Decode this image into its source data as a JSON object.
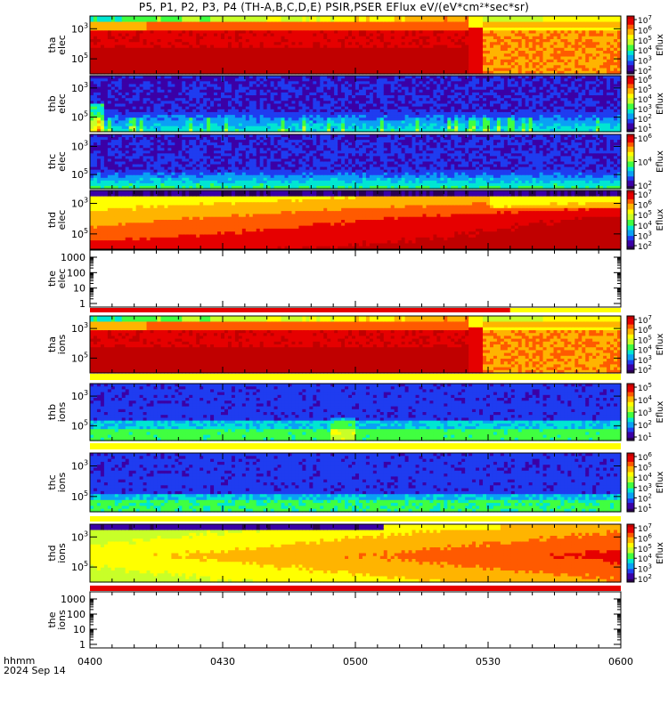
{
  "title": "P5, P1, P2, P3, P4 (TH-A,B,C,D,E) PSIR,PSER EFlux eV/(eV*cm²*sec*sr)",
  "footer": {
    "label_time_format": "hhmm",
    "date": "2024 Sep 14"
  },
  "chart_data": {
    "type": "heatmap",
    "x_ticks": [
      "0400",
      "0430",
      "0500",
      "0530",
      "0600"
    ],
    "x_range": [
      "04:00",
      "06:00"
    ],
    "panels": [
      {
        "id": "tha-elec",
        "ylabel": [
          "tha",
          "elec"
        ],
        "kind": "spectrogram",
        "pattern": "tha",
        "ytick_exps": [
          "3",
          "5"
        ],
        "cbar_exps": [
          "2",
          "3",
          "4",
          "5",
          "6",
          "7"
        ],
        "cbar_label": "Eflux",
        "flag_bar": "none"
      },
      {
        "id": "thb-elec",
        "ylabel": [
          "thb",
          "elec"
        ],
        "kind": "spectrogram",
        "pattern": "thb_e",
        "ytick_exps": [
          "3",
          "5"
        ],
        "cbar_exps": [
          "1",
          "2",
          "3",
          "4",
          "5",
          "6"
        ],
        "cbar_label": "Eflux",
        "flag_bar": "none"
      },
      {
        "id": "thc-elec",
        "ylabel": [
          "thc",
          "elec"
        ],
        "kind": "spectrogram",
        "pattern": "thc_e",
        "ytick_exps": [
          "3",
          "5"
        ],
        "cbar_exps": [
          "2",
          "4",
          "6"
        ],
        "cbar_label": "Eflux",
        "flag_bar": "none"
      },
      {
        "id": "thd-elec",
        "ylabel": [
          "thd",
          "elec"
        ],
        "kind": "spectrogram",
        "pattern": "thd_e",
        "ytick_exps": [
          "3",
          "5"
        ],
        "cbar_exps": [
          "2",
          "3",
          "4",
          "5",
          "6",
          "7"
        ],
        "cbar_label": "Eflux",
        "flag_bar": "none"
      },
      {
        "id": "the-elec",
        "ylabel": [
          "the",
          "elec"
        ],
        "kind": "empty",
        "yticks": [
          "1000",
          "100",
          "10",
          "1"
        ],
        "flag_bar": "red-then-yellow",
        "flag_switch": "05:35"
      },
      {
        "id": "tha-ions",
        "ylabel": [
          "tha",
          "ions"
        ],
        "kind": "spectrogram",
        "pattern": "tha",
        "ytick_exps": [
          "3",
          "5"
        ],
        "cbar_exps": [
          "2",
          "3",
          "4",
          "5",
          "6",
          "7"
        ],
        "cbar_label": "Eflux",
        "flag_bar": "yellow"
      },
      {
        "id": "thb-ions",
        "ylabel": [
          "thb",
          "ions"
        ],
        "kind": "spectrogram",
        "pattern": "thb_i",
        "ytick_exps": [
          "3",
          "5"
        ],
        "cbar_exps": [
          "1",
          "2",
          "3",
          "4",
          "5"
        ],
        "cbar_label": "Eflux",
        "flag_bar": "yellow"
      },
      {
        "id": "thc-ions",
        "ylabel": [
          "thc",
          "ions"
        ],
        "kind": "spectrogram",
        "pattern": "thc_i",
        "ytick_exps": [
          "3",
          "5"
        ],
        "cbar_exps": [
          "1",
          "2",
          "3",
          "4",
          "5",
          "6"
        ],
        "cbar_label": "Eflux",
        "flag_bar": "yellow"
      },
      {
        "id": "thd-ions",
        "ylabel": [
          "thd",
          "ions"
        ],
        "kind": "spectrogram",
        "pattern": "thd_i",
        "ytick_exps": [
          "3",
          "5"
        ],
        "cbar_exps": [
          "2",
          "3",
          "4",
          "5",
          "6",
          "7"
        ],
        "cbar_label": "Eflux",
        "flag_bar": "red"
      },
      {
        "id": "the-ions",
        "ylabel": [
          "the",
          "ions"
        ],
        "kind": "empty",
        "yticks": [
          "1000",
          "100",
          "10",
          "1"
        ],
        "flag_bar": "none"
      }
    ],
    "colormap": [
      "#2a0052",
      "#3b00a6",
      "#1f3cf0",
      "#0aa0f5",
      "#00e6d2",
      "#40ff40",
      "#c8ff28",
      "#ffff00",
      "#ffb400",
      "#ff5a00",
      "#e60000",
      "#c00000"
    ],
    "grid": false,
    "legend": "colorbar-right-of-each-panel"
  }
}
